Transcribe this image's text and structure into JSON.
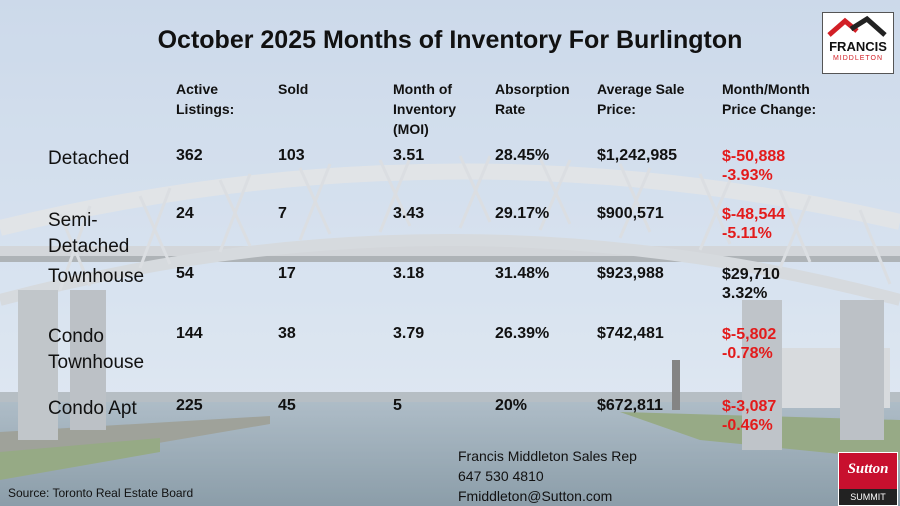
{
  "title": "October 2025 Months of Inventory For Burlington",
  "headers": [
    [
      "Active",
      "Listings:"
    ],
    [
      "Sold"
    ],
    [
      "Month of",
      "Inventory",
      "(MOI)"
    ],
    [
      "Absorption",
      "Rate"
    ],
    [
      "Average Sale",
      "Price:"
    ],
    [
      "Month/Month",
      "Price Change:"
    ]
  ],
  "rows": [
    {
      "label": [
        "Detached"
      ],
      "active": "362",
      "sold": "103",
      "moi": "3.51",
      "absorption": "28.45%",
      "avg_price": "$1,242,985",
      "change_amount": "$-50,888",
      "change_pct": "-3.93%",
      "direction": "down"
    },
    {
      "label": [
        "Semi-",
        "Detached"
      ],
      "active": "24",
      "sold": "7",
      "moi": "3.43",
      "absorption": "29.17%",
      "avg_price": "$900,571",
      "change_amount": "$-48,544",
      "change_pct": "-5.11%",
      "direction": "down"
    },
    {
      "label": [
        "Townhouse"
      ],
      "active": "54",
      "sold": "17",
      "moi": "3.18",
      "absorption": "31.48%",
      "avg_price": "$923,988",
      "change_amount": "$29,710",
      "change_pct": "3.32%",
      "direction": "up"
    },
    {
      "label": [
        "Condo",
        "Townhouse"
      ],
      "active": "144",
      "sold": "38",
      "moi": "3.79",
      "absorption": "26.39%",
      "avg_price": "$742,481",
      "change_amount": "$-5,802",
      "change_pct": "-0.78%",
      "direction": "down"
    },
    {
      "label": [
        "Condo Apt"
      ],
      "active": "225",
      "sold": "45",
      "moi": "5",
      "absorption": "20%",
      "avg_price": "$672,811",
      "change_amount": "$-3,087",
      "change_pct": "-0.46%",
      "direction": "down"
    }
  ],
  "contact": {
    "name": "Francis Middleton Sales Rep",
    "phone": "647 530 4810",
    "email": "Fmiddleton@Sutton.com"
  },
  "source": "Source: Toronto Real Estate Board",
  "logo_fm": {
    "line1": "FRANCIS",
    "line2": "MIDDLETON"
  },
  "logo_sutton": {
    "brand": "Sutton",
    "sub": "SUMMIT"
  },
  "colors": {
    "negative": "#e31b1b",
    "sutton_red": "#c8102e",
    "text": "#111111"
  }
}
